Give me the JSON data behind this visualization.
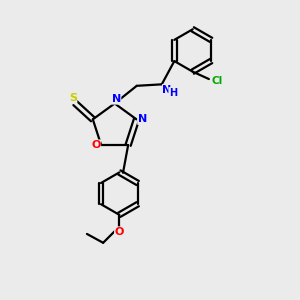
{
  "bg_color": "#ebebeb",
  "bond_color": "#000000",
  "atom_colors": {
    "N": "#0000ff",
    "O": "#ff0000",
    "S": "#cccc00",
    "Cl": "#00aa00",
    "C": "#000000",
    "H": "#000000"
  }
}
